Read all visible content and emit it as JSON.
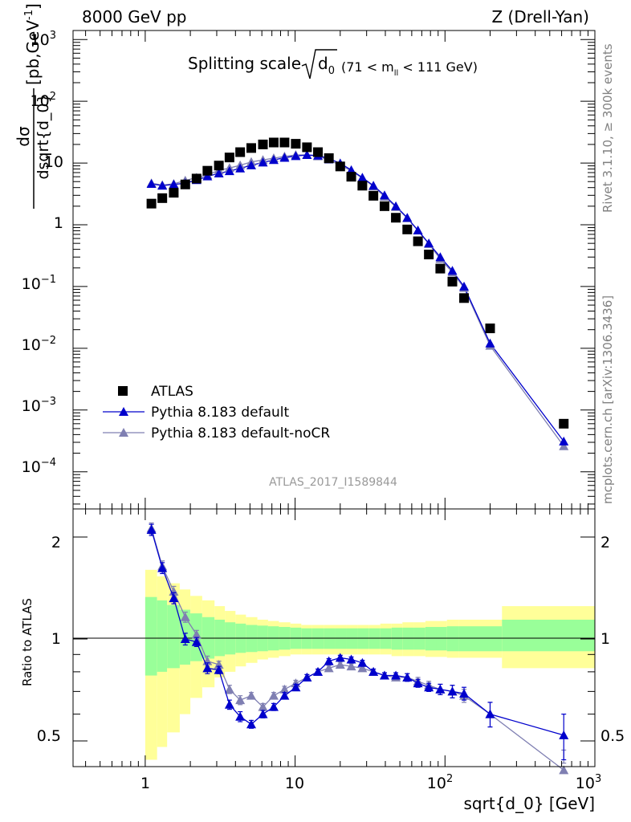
{
  "header": {
    "left_title": "8000 GeV pp",
    "right_title": "Z (Drell-Yan)"
  },
  "side_labels": {
    "rivet": "Rivet 3.1.10, ≥ 300k events",
    "mcplots": "mcplots.cern.ch [arXiv:1306.3436]"
  },
  "plot_title": {
    "main": "Splitting scale",
    "sqrt_sub": "d",
    "sub_index": "0",
    "range": "(71 < m",
    "range_sub": "ll",
    "range_end": " < 111 GeV)"
  },
  "analysis_id": "ATLAS_2017_I1589844",
  "legend": {
    "atlas": "ATLAS",
    "pythia": "Pythia 8.183 default",
    "nocr": "Pythia 8.183 default-noCR"
  },
  "colors": {
    "atlas": "#000000",
    "pythia": "#0000cc",
    "nocr": "#7f7fb2",
    "band_inner": "#99ff99",
    "band_outer": "#ffff99"
  },
  "chart_data": [
    {
      "type": "scatter",
      "title": "Splitting scale √d0 (71 < m_ll < 111 GeV)",
      "xlabel": "sqrt{d_0} [GeV]",
      "ylabel": "dσ/dsqrt{d_0} [pb,GeV^-1]",
      "xscale": "log",
      "yscale": "log",
      "xlim": [
        0.33,
        1000
      ],
      "ylim": [
        2.5e-05,
        1400
      ],
      "y_tick_labels": [
        "10^3",
        "10^2",
        "10",
        "1",
        "10^-1",
        "10^-2",
        "10^-3",
        "10^-4"
      ],
      "x": [
        1.1,
        1.3,
        1.55,
        1.85,
        2.2,
        2.6,
        3.1,
        3.65,
        4.3,
        5.1,
        6.1,
        7.2,
        8.5,
        10.1,
        12,
        14.2,
        16.8,
        20,
        23.7,
        28.1,
        33.3,
        39.5,
        47,
        56,
        66,
        78,
        93,
        112,
        134,
        200,
        620
      ],
      "series": [
        {
          "name": "ATLAS",
          "values": [
            2.2,
            2.7,
            3.3,
            4.5,
            5.6,
            7.5,
            9.1,
            12.3,
            15,
            17.5,
            20,
            21.5,
            21.5,
            20.5,
            18,
            15,
            12,
            8.8,
            6,
            4.3,
            2.95,
            2,
            1.3,
            0.84,
            0.54,
            0.33,
            0.195,
            0.12,
            0.065,
            0.021,
            0.0006
          ]
        },
        {
          "name": "Pythia 8.183 default",
          "values": [
            4.6,
            4.3,
            4.5,
            4.7,
            5.3,
            6.1,
            6.8,
            7.4,
            8.2,
            9.2,
            10.2,
            11.2,
            12.2,
            13,
            13.5,
            13.2,
            11.8,
            9.9,
            7.7,
            5.8,
            4.3,
            3,
            2,
            1.3,
            0.81,
            0.5,
            0.3,
            0.18,
            0.1,
            0.012,
            0.00031
          ]
        },
        {
          "name": "Pythia 8.183 default-noCR",
          "values": [
            4.7,
            4.4,
            4.6,
            5.2,
            5.8,
            6.4,
            7.6,
            8.3,
            9.2,
            10.4,
            11.2,
            12,
            12.8,
            13.5,
            13.5,
            12.9,
            11.3,
            9.2,
            7.5,
            5.7,
            4.2,
            2.85,
            1.95,
            1.28,
            0.81,
            0.49,
            0.28,
            0.17,
            0.095,
            0.011,
            0.00026
          ]
        }
      ]
    },
    {
      "type": "line",
      "title": "Ratio",
      "xlabel": "sqrt{d_0} [GeV]",
      "ylabel": "Ratio to ATLAS",
      "xscale": "log",
      "yscale": "log",
      "xlim": [
        0.33,
        1000
      ],
      "ylim": [
        0.42,
        2.42
      ],
      "y_tick_labels": [
        "2",
        "1",
        "0.5"
      ],
      "x_tick_labels": [
        "1",
        "10",
        "10^2",
        "10^3"
      ],
      "x": [
        1.1,
        1.3,
        1.55,
        1.85,
        2.2,
        2.6,
        3.1,
        3.65,
        4.3,
        5.1,
        6.1,
        7.2,
        8.5,
        10.1,
        12,
        14.2,
        16.8,
        20,
        23.7,
        28.1,
        33.3,
        39.5,
        47,
        56,
        66,
        78,
        93,
        112,
        134,
        200,
        620
      ],
      "series": [
        {
          "name": "Pythia 8.183 default",
          "values": [
            2.1,
            1.62,
            1.32,
            1.0,
            0.98,
            0.82,
            0.81,
            0.64,
            0.59,
            0.56,
            0.6,
            0.63,
            0.68,
            0.72,
            0.77,
            0.8,
            0.86,
            0.88,
            0.87,
            0.85,
            0.8,
            0.78,
            0.78,
            0.77,
            0.74,
            0.72,
            0.71,
            0.7,
            0.69,
            0.6,
            0.52
          ]
        },
        {
          "name": "Pythia 8.183 default-noCR",
          "values": [
            2.12,
            1.64,
            1.38,
            1.16,
            1.03,
            0.86,
            0.84,
            0.71,
            0.66,
            0.68,
            0.63,
            0.68,
            0.71,
            0.74,
            0.77,
            0.8,
            0.82,
            0.84,
            0.83,
            0.82,
            0.8,
            0.78,
            0.77,
            0.77,
            0.75,
            0.73,
            0.71,
            0.7,
            0.68,
            0.6,
            0.41
          ]
        }
      ],
      "error_band": {
        "bin_edges": [
          1.0,
          1.2,
          1.4,
          1.7,
          2.0,
          2.4,
          2.9,
          3.4,
          4.0,
          4.7,
          5.6,
          6.6,
          7.8,
          9.3,
          11,
          13,
          15.5,
          18.5,
          22,
          26,
          31,
          37,
          44,
          52,
          62,
          74,
          87,
          103,
          123,
          240,
          1000
        ],
        "inner_low": [
          0.78,
          0.8,
          0.82,
          0.84,
          0.86,
          0.875,
          0.89,
          0.9,
          0.91,
          0.915,
          0.92,
          0.925,
          0.93,
          0.935,
          0.935,
          0.935,
          0.935,
          0.935,
          0.935,
          0.935,
          0.935,
          0.935,
          0.93,
          0.93,
          0.93,
          0.925,
          0.925,
          0.92,
          0.92,
          0.92
        ],
        "inner_high": [
          1.33,
          1.3,
          1.26,
          1.22,
          1.19,
          1.16,
          1.14,
          1.12,
          1.11,
          1.1,
          1.095,
          1.09,
          1.085,
          1.08,
          1.075,
          1.075,
          1.075,
          1.075,
          1.075,
          1.075,
          1.075,
          1.075,
          1.08,
          1.08,
          1.08,
          1.085,
          1.085,
          1.09,
          1.09,
          1.14
        ],
        "outer_low": [
          0.44,
          0.48,
          0.53,
          0.6,
          0.67,
          0.72,
          0.77,
          0.8,
          0.83,
          0.85,
          0.87,
          0.88,
          0.89,
          0.9,
          0.9,
          0.9,
          0.9,
          0.9,
          0.9,
          0.9,
          0.9,
          0.9,
          0.89,
          0.89,
          0.89,
          0.885,
          0.885,
          0.88,
          0.88,
          0.82
        ],
        "outer_high": [
          1.6,
          1.53,
          1.46,
          1.4,
          1.34,
          1.3,
          1.25,
          1.21,
          1.18,
          1.16,
          1.14,
          1.13,
          1.12,
          1.11,
          1.1,
          1.1,
          1.1,
          1.1,
          1.1,
          1.1,
          1.1,
          1.11,
          1.11,
          1.12,
          1.12,
          1.13,
          1.13,
          1.14,
          1.14,
          1.25
        ]
      },
      "errors": {
        "Pythia 8.183 default": [
          0.08,
          0.06,
          0.05,
          0.04,
          0.03,
          0.03,
          0.02,
          0.02,
          0.02,
          0.015,
          0.015,
          0.015,
          0.015,
          0.015,
          0.015,
          0.015,
          0.015,
          0.015,
          0.015,
          0.015,
          0.015,
          0.015,
          0.015,
          0.02,
          0.02,
          0.02,
          0.025,
          0.03,
          0.03,
          0.05,
          0.08
        ],
        "Pythia 8.183 default-noCR": [
          0.08,
          0.06,
          0.05,
          0.04,
          0.03,
          0.03,
          0.02,
          0.02,
          0.02,
          0.015,
          0.015,
          0.015,
          0.015,
          0.015,
          0.015,
          0.015,
          0.015,
          0.015,
          0.015,
          0.015,
          0.015,
          0.015,
          0.015,
          0.02,
          0.02,
          0.02,
          0.025,
          0.03,
          0.03,
          0.05,
          0.06
        ]
      }
    }
  ],
  "axis_labels": {
    "x": "sqrt{d_0} [GeV]",
    "ratio_y": "Ratio to ATLAS",
    "top_y_num": "dσ",
    "top_y_den": "dsqrt{d_0}",
    "top_y_units": "[pb,GeV",
    "top_y_units_sup": "-1",
    "top_y_units_end": "]"
  }
}
